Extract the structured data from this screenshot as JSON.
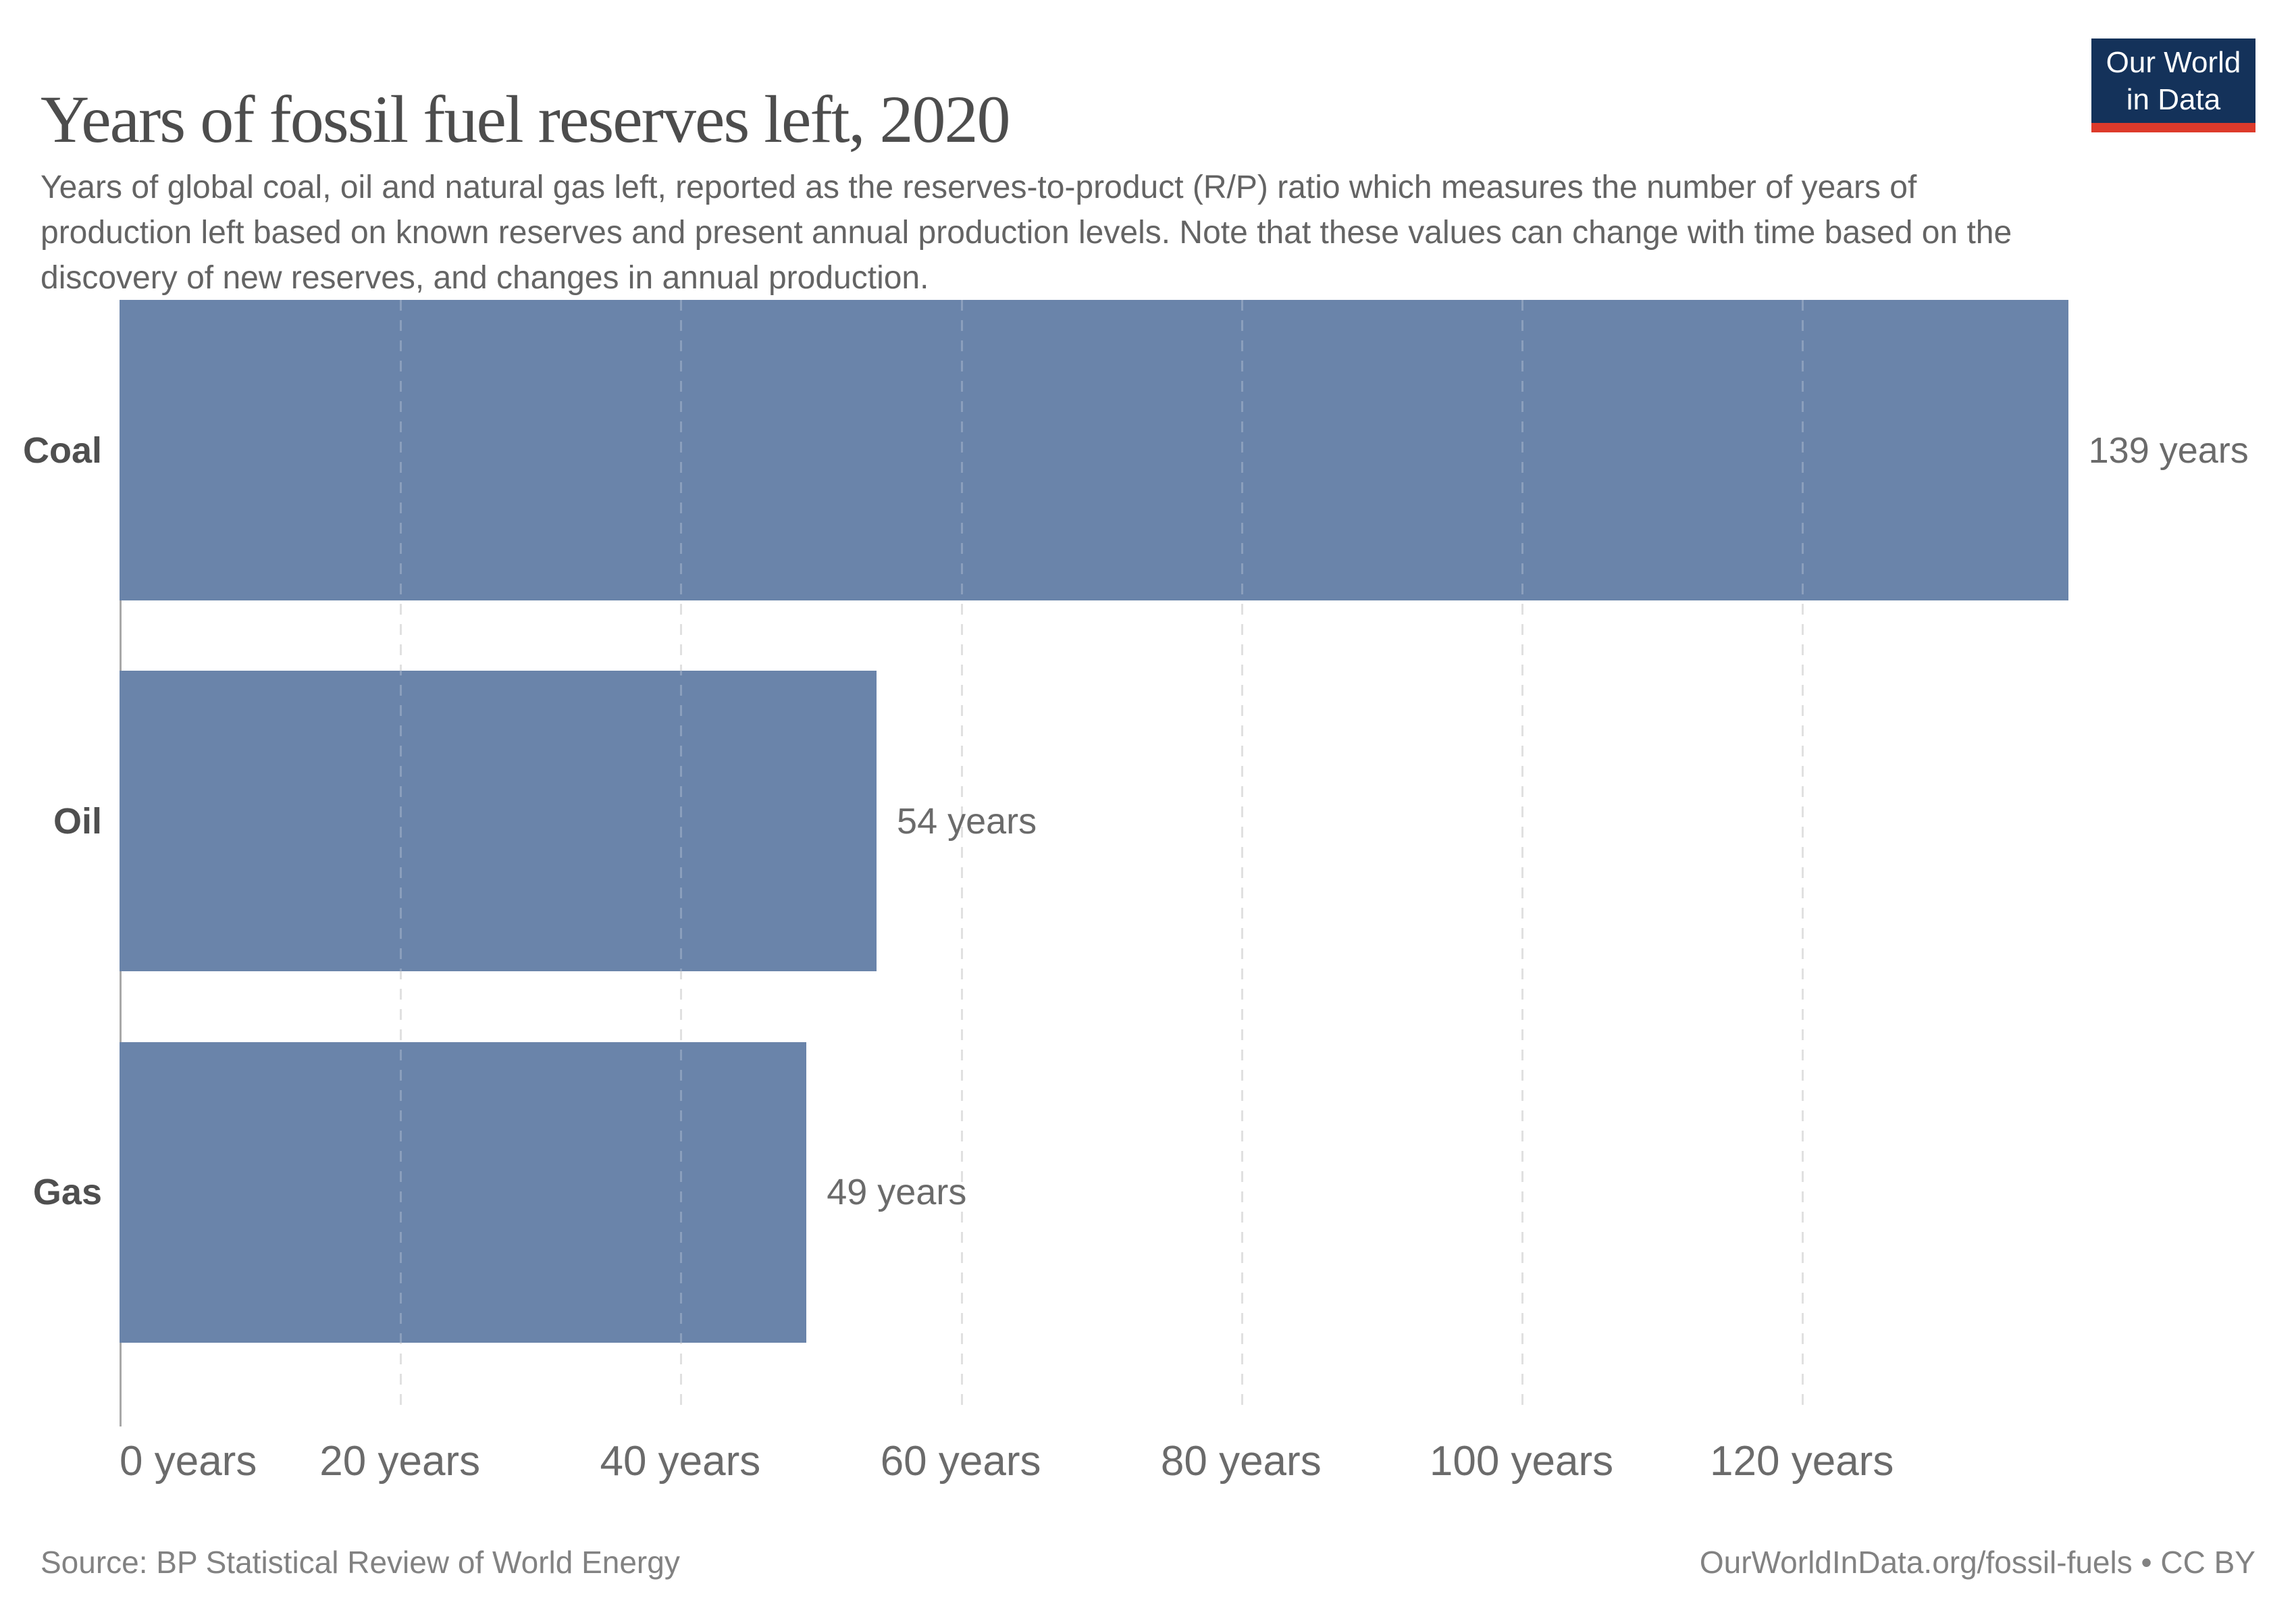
{
  "header": {
    "title": "Years of fossil fuel reserves left, 2020",
    "subtitle": "Years of global coal, oil and natural gas left, reported as the reserves-to-product (R/P) ratio which measures the number of years of production left based on known reserves and present annual production levels. Note that these values can change with time based on the discovery of new reserves, and changes in annual production.",
    "logo": {
      "line1": "Our World",
      "line2": "in Data",
      "bg_color": "#14325a",
      "accent_color": "#dd3a2b"
    }
  },
  "chart_data": {
    "type": "bar",
    "orientation": "horizontal",
    "title": "Years of fossil fuel reserves left, 2020",
    "categories": [
      "Coal",
      "Oil",
      "Gas"
    ],
    "values": [
      139,
      54,
      49
    ],
    "unit": "years",
    "value_labels": [
      "139 years",
      "54 years",
      "49 years"
    ],
    "x_ticks": [
      {
        "value": 0,
        "label": "0 years"
      },
      {
        "value": 20,
        "label": "20 years"
      },
      {
        "value": 40,
        "label": "40 years"
      },
      {
        "value": 60,
        "label": "60 years"
      },
      {
        "value": 80,
        "label": "80 years"
      },
      {
        "value": 100,
        "label": "100 years"
      },
      {
        "value": 120,
        "label": "120 years"
      }
    ],
    "xlim": [
      0,
      139
    ],
    "bar_color": "#6a84aa",
    "grid": "vertical-dashed",
    "gridline_color": "#d8d8d8",
    "axis_color": "#a8a8a8",
    "legend_position": "none"
  },
  "footer": {
    "source": "Source: BP Statistical Review of World Energy",
    "attribution": "OurWorldInData.org/fossil-fuels • CC BY"
  }
}
